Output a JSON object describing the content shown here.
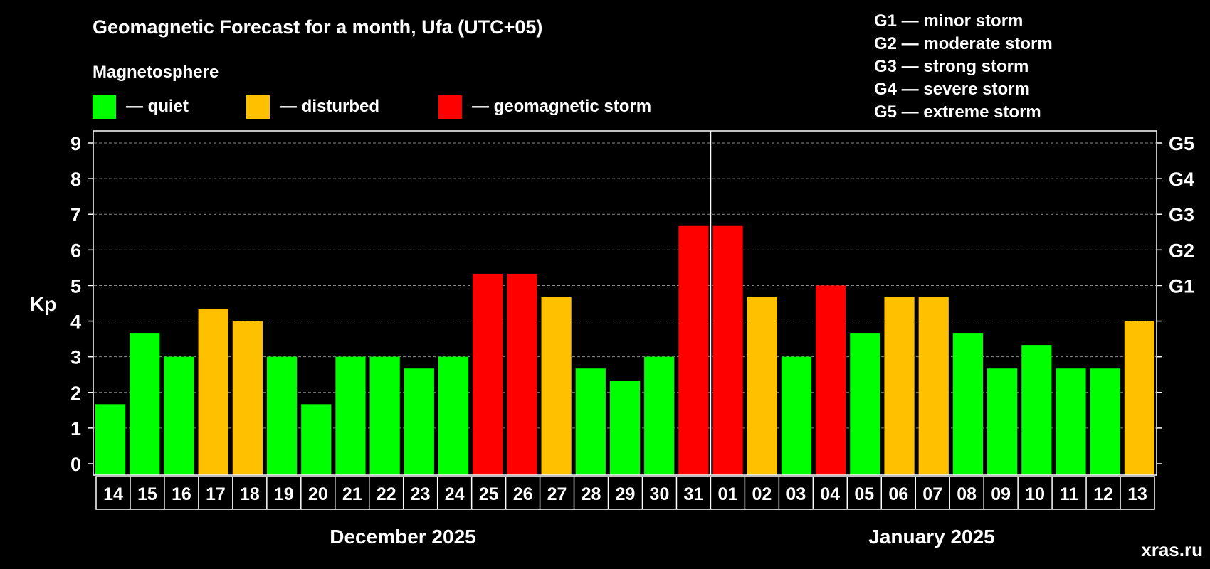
{
  "chart_data": {
    "type": "bar",
    "title": "Geomagnetic Forecast for a month, Ufa (UTC+05)",
    "legend_heading": "Magnetosphere",
    "legend": [
      {
        "label": "— quiet",
        "color": "#00ff00"
      },
      {
        "label": "— disturbed",
        "color": "#ffc000"
      },
      {
        "label": "— geomagnetic storm",
        "color": "#ff0000"
      }
    ],
    "g_scale": [
      "G1 — minor storm",
      "G2 — moderate storm",
      "G3 — strong storm",
      "G4 — severe storm",
      "G5 — extreme storm"
    ],
    "ylabel": "Kp",
    "ylim": [
      0,
      9
    ],
    "yticks": [
      "0",
      "1",
      "2",
      "3",
      "4",
      "5",
      "6",
      "7",
      "8",
      "9"
    ],
    "right_ticks": [
      {
        "kp": 5,
        "label": "G1"
      },
      {
        "kp": 6,
        "label": "G2"
      },
      {
        "kp": 7,
        "label": "G3"
      },
      {
        "kp": 8,
        "label": "G4"
      },
      {
        "kp": 9,
        "label": "G5"
      }
    ],
    "grid": true,
    "categories": [
      "14",
      "15",
      "16",
      "17",
      "18",
      "19",
      "20",
      "21",
      "22",
      "23",
      "24",
      "25",
      "26",
      "27",
      "28",
      "29",
      "30",
      "31",
      "01",
      "02",
      "03",
      "04",
      "05",
      "06",
      "07",
      "08",
      "09",
      "10",
      "11",
      "12",
      "13"
    ],
    "values": [
      1.67,
      3.67,
      3.0,
      4.33,
      4.0,
      3.0,
      1.67,
      3.0,
      3.0,
      2.67,
      3.0,
      5.33,
      5.33,
      4.67,
      2.67,
      2.33,
      3.0,
      6.67,
      6.67,
      4.67,
      3.0,
      5.0,
      3.67,
      4.67,
      4.67,
      3.67,
      2.67,
      3.33,
      2.67,
      2.67,
      4.0
    ],
    "colors": {
      "quiet": "#00ff00",
      "disturbed": "#ffc000",
      "storm": "#ff0000",
      "background": "#000000",
      "grid": "#888888",
      "text": "#ffffff",
      "watermark": "#6e6e6e"
    },
    "months": [
      {
        "label": "December 2025",
        "from": 0,
        "to": 17
      },
      {
        "label": "January 2025",
        "from": 18,
        "to": 30
      }
    ],
    "watermark": "xras.ru"
  }
}
